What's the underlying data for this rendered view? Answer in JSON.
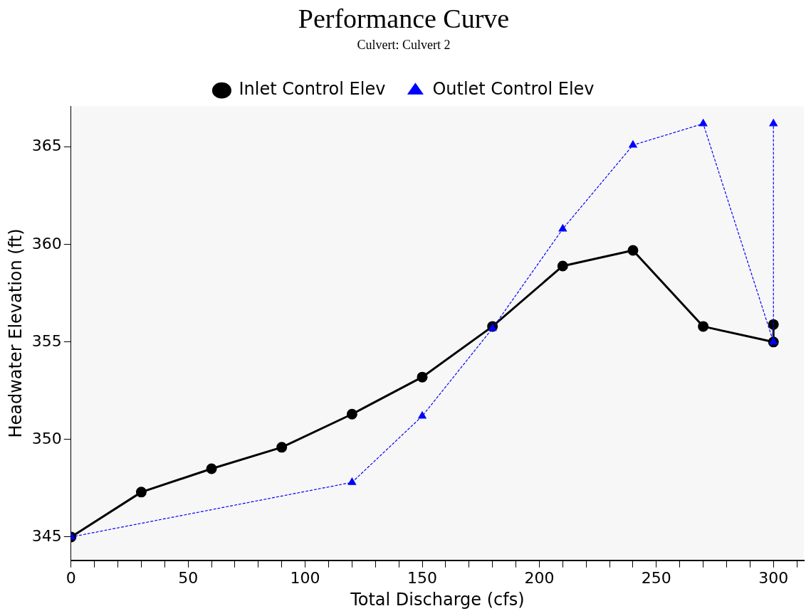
{
  "chart_data": {
    "type": "line",
    "title": "Performance Curve",
    "subtitle": "Culvert: Culvert 2",
    "xlabel": "Total Discharge (cfs)",
    "ylabel": "Headwater Elevation (ft)",
    "series": [
      {
        "name": "Inlet Control Elev",
        "color": "#000000",
        "marker": "circle",
        "line_style": "solid",
        "x": [
          0,
          30,
          60,
          90,
          120,
          150,
          180,
          210,
          240,
          270,
          300,
          300
        ],
        "values": [
          345,
          347.3,
          348.5,
          349.6,
          351.3,
          353.2,
          355.8,
          358.9,
          359.7,
          355.8,
          355.0,
          355.9
        ]
      },
      {
        "name": "Outlet Control Elev",
        "color": "#0000ff",
        "marker": "triangle",
        "line_style": "dotted",
        "x": [
          0,
          120,
          150,
          180,
          210,
          240,
          270,
          300,
          300
        ],
        "values": [
          345,
          347.8,
          351.2,
          355.7,
          360.8,
          365.1,
          366.2,
          355.0,
          366.2
        ]
      }
    ],
    "xlim": [
      0,
      313
    ],
    "ylim": [
      343.8,
      367.1
    ],
    "xticks": [
      0,
      {
        "value": 10,
        "label": null
      },
      {
        "value": 20,
        "label": null
      },
      {
        "value": 30,
        "label": null
      },
      {
        "value": 40,
        "label": null
      },
      50,
      {
        "value": 60,
        "label": null
      },
      {
        "value": 70,
        "label": null
      },
      {
        "value": 80,
        "label": null
      },
      {
        "value": 90,
        "label": null
      },
      100,
      {
        "value": 110,
        "label": null
      },
      {
        "value": 120,
        "label": null
      },
      {
        "value": 130,
        "label": null
      },
      {
        "value": 140,
        "label": null
      },
      150,
      {
        "value": 160,
        "label": null
      },
      {
        "value": 170,
        "label": null
      },
      {
        "value": 180,
        "label": null
      },
      {
        "value": 190,
        "label": null
      },
      200,
      {
        "value": 210,
        "label": null
      },
      {
        "value": 220,
        "label": null
      },
      {
        "value": 230,
        "label": null
      },
      {
        "value": 240,
        "label": null
      },
      250,
      {
        "value": 260,
        "label": null
      },
      {
        "value": 270,
        "label": null
      },
      {
        "value": 280,
        "label": null
      },
      {
        "value": 290,
        "label": null
      },
      300,
      {
        "value": 310,
        "label": null
      }
    ],
    "yticks": [
      345,
      350,
      355,
      360,
      365
    ],
    "grid": false,
    "legend": "top"
  }
}
